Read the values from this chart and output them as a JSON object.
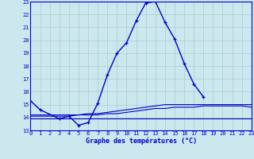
{
  "hours": [
    0,
    1,
    2,
    3,
    4,
    5,
    6,
    7,
    8,
    9,
    10,
    11,
    12,
    13,
    14,
    15,
    16,
    17,
    18,
    19,
    20,
    21,
    22,
    23
  ],
  "temp_actual": [
    15.3,
    14.6,
    null,
    13.9,
    14.1,
    13.4,
    13.6,
    15.1,
    17.3,
    19.0,
    19.8,
    21.5,
    22.9,
    23.0,
    21.4,
    20.1,
    18.2,
    16.6,
    15.6,
    null,
    null,
    null,
    null,
    null
  ],
  "temp_min": [
    13.9,
    13.9,
    13.9,
    13.9,
    13.9,
    13.9,
    13.9,
    13.9,
    13.9,
    13.9,
    13.9,
    13.9,
    13.9,
    13.9,
    13.9,
    13.9,
    13.9,
    13.9,
    13.9,
    13.9,
    13.9,
    13.9,
    13.9,
    13.9
  ],
  "temp_dew": [
    14.1,
    14.1,
    14.1,
    14.1,
    14.1,
    14.2,
    14.2,
    14.2,
    14.3,
    14.3,
    14.4,
    14.5,
    14.6,
    14.7,
    14.7,
    14.8,
    14.8,
    14.8,
    14.9,
    14.9,
    14.9,
    14.9,
    14.9,
    14.8
  ],
  "temp_avg": [
    14.2,
    14.2,
    14.2,
    14.2,
    14.2,
    14.2,
    14.3,
    14.3,
    14.4,
    14.5,
    14.6,
    14.7,
    14.8,
    14.9,
    15.0,
    15.0,
    15.0,
    15.0,
    15.0,
    15.0,
    15.0,
    15.0,
    15.0,
    15.0
  ],
  "line_color": "#0000cc",
  "bg_color": "#cce8ee",
  "grid_color": "#aacccc",
  "xlabel": "Graphe des températures (°C)",
  "ylim": [
    13,
    23
  ],
  "xlim": [
    0,
    23
  ],
  "yticks": [
    13,
    14,
    15,
    16,
    17,
    18,
    19,
    20,
    21,
    22,
    23
  ],
  "xticks": [
    0,
    1,
    2,
    3,
    4,
    5,
    6,
    7,
    8,
    9,
    10,
    11,
    12,
    13,
    14,
    15,
    16,
    17,
    18,
    19,
    20,
    21,
    22,
    23
  ]
}
